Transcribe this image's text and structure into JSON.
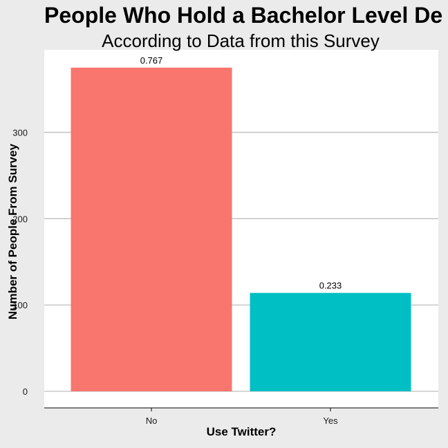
{
  "chart_data": {
    "type": "bar",
    "title": "People Who Hold a Bachelor Level De",
    "subtitle": "According to Data from this Survey",
    "xlabel": "Use Twitter?",
    "ylabel": "Number of People From Survey",
    "categories": [
      "No",
      "Yes"
    ],
    "values": [
      375,
      114
    ],
    "data_labels": [
      "0.767",
      "0.233"
    ],
    "colors": [
      "#F8766D",
      "#00BFC4"
    ],
    "ylim": [
      0,
      400
    ],
    "yticks": [
      0,
      100,
      200,
      300
    ],
    "ytick_labels": [
      "0",
      "100",
      "200",
      "300"
    ],
    "grid": "horizontal major",
    "legend": "none"
  }
}
